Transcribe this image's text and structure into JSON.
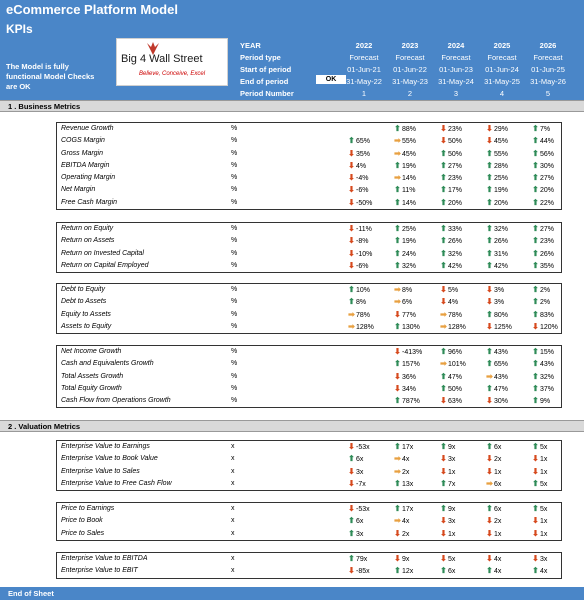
{
  "header": {
    "app_title": "eCommerce Platform Model",
    "page_title": "KPIs",
    "model_check": "The Model is fully functional Model Checks are OK",
    "logo": {
      "text": "Big 4 Wall Street",
      "tagline": "Believe, Conceive, Excel"
    },
    "labels": [
      "YEAR",
      "Period type",
      "Start of period",
      "End of period",
      "Period Number"
    ],
    "ok_label": "OK",
    "columns": [
      {
        "year": "2022",
        "type": "Forecast",
        "start": "01-Jun-21",
        "end": "31-May-22",
        "num": "1"
      },
      {
        "year": "2023",
        "type": "Forecast",
        "start": "01-Jun-22",
        "end": "31-May-23",
        "num": "2"
      },
      {
        "year": "2024",
        "type": "Forecast",
        "start": "01-Jun-23",
        "end": "31-May-24",
        "num": "3"
      },
      {
        "year": "2025",
        "type": "Forecast",
        "start": "01-Jun-24",
        "end": "31-May-25",
        "num": "4"
      },
      {
        "year": "2026",
        "type": "Forecast",
        "start": "01-Jun-25",
        "end": "31-May-26",
        "num": "5"
      }
    ]
  },
  "sections": [
    {
      "title": "1 . Business Metrics",
      "blocks": [
        [
          {
            "label": "Revenue Growth",
            "unit": "%",
            "values": [
              null,
              [
                "u",
                "88%"
              ],
              [
                "d",
                "23%"
              ],
              [
                "d",
                "29%"
              ],
              [
                "u",
                "7%"
              ]
            ]
          },
          {
            "label": "COGS Margin",
            "unit": "%",
            "values": [
              [
                "u",
                "65%"
              ],
              [
                "f",
                "55%"
              ],
              [
                "d",
                "50%"
              ],
              [
                "d",
                "45%"
              ],
              [
                "u",
                "44%"
              ]
            ]
          },
          {
            "label": "Gross Margin",
            "unit": "%",
            "values": [
              [
                "d",
                "35%"
              ],
              [
                "f",
                "45%"
              ],
              [
                "u",
                "50%"
              ],
              [
                "u",
                "55%"
              ],
              [
                "u",
                "56%"
              ]
            ]
          },
          {
            "label": "EBITDA Margin",
            "unit": "%",
            "values": [
              [
                "d",
                "4%"
              ],
              [
                "u",
                "19%"
              ],
              [
                "u",
                "27%"
              ],
              [
                "u",
                "28%"
              ],
              [
                "u",
                "30%"
              ]
            ]
          },
          {
            "label": "Operating Margin",
            "unit": "%",
            "values": [
              [
                "d",
                "-4%"
              ],
              [
                "f",
                "14%"
              ],
              [
                "u",
                "23%"
              ],
              [
                "u",
                "25%"
              ],
              [
                "u",
                "27%"
              ]
            ]
          },
          {
            "label": "Net Margin",
            "unit": "%",
            "values": [
              [
                "d",
                "-6%"
              ],
              [
                "u",
                "11%"
              ],
              [
                "u",
                "17%"
              ],
              [
                "u",
                "19%"
              ],
              [
                "u",
                "20%"
              ]
            ]
          },
          {
            "label": "Free Cash Margin",
            "unit": "%",
            "values": [
              [
                "d",
                "-50%"
              ],
              [
                "u",
                "14%"
              ],
              [
                "u",
                "20%"
              ],
              [
                "u",
                "20%"
              ],
              [
                "u",
                "22%"
              ]
            ]
          }
        ],
        [
          {
            "label": "Return on Equity",
            "unit": "%",
            "values": [
              [
                "d",
                "-11%"
              ],
              [
                "u",
                "25%"
              ],
              [
                "u",
                "33%"
              ],
              [
                "u",
                "32%"
              ],
              [
                "u",
                "27%"
              ]
            ]
          },
          {
            "label": "Return on Assets",
            "unit": "%",
            "values": [
              [
                "d",
                "-8%"
              ],
              [
                "u",
                "19%"
              ],
              [
                "u",
                "26%"
              ],
              [
                "u",
                "26%"
              ],
              [
                "u",
                "23%"
              ]
            ]
          },
          {
            "label": "Return on Invested Capital",
            "unit": "%",
            "values": [
              [
                "d",
                "-10%"
              ],
              [
                "u",
                "24%"
              ],
              [
                "u",
                "32%"
              ],
              [
                "u",
                "31%"
              ],
              [
                "u",
                "26%"
              ]
            ]
          },
          {
            "label": "Return on Capital Employed",
            "unit": "%",
            "values": [
              [
                "d",
                "-6%"
              ],
              [
                "u",
                "32%"
              ],
              [
                "u",
                "42%"
              ],
              [
                "u",
                "42%"
              ],
              [
                "u",
                "35%"
              ]
            ]
          }
        ],
        [
          {
            "label": "Debt to Equity",
            "unit": "%",
            "values": [
              [
                "u",
                "10%"
              ],
              [
                "f",
                "8%"
              ],
              [
                "d",
                "5%"
              ],
              [
                "d",
                "3%"
              ],
              [
                "u",
                "2%"
              ]
            ]
          },
          {
            "label": "Debt to Assets",
            "unit": "%",
            "values": [
              [
                "u",
                "8%"
              ],
              [
                "f",
                "6%"
              ],
              [
                "d",
                "4%"
              ],
              [
                "d",
                "3%"
              ],
              [
                "u",
                "2%"
              ]
            ]
          },
          {
            "label": "Equity to Assets",
            "unit": "%",
            "values": [
              [
                "f",
                "78%"
              ],
              [
                "d",
                "77%"
              ],
              [
                "f",
                "78%"
              ],
              [
                "u",
                "80%"
              ],
              [
                "u",
                "83%"
              ]
            ]
          },
          {
            "label": "Assets to Equity",
            "unit": "%",
            "values": [
              [
                "f",
                "128%"
              ],
              [
                "u",
                "130%"
              ],
              [
                "f",
                "128%"
              ],
              [
                "d",
                "125%"
              ],
              [
                "d",
                "120%"
              ]
            ]
          }
        ],
        [
          {
            "label": "Net Income Growth",
            "unit": "%",
            "values": [
              null,
              [
                "d",
                "-413%"
              ],
              [
                "u",
                "96%"
              ],
              [
                "u",
                "43%"
              ],
              [
                "u",
                "15%"
              ]
            ]
          },
          {
            "label": "Cash and Equivalents Growth",
            "unit": "%",
            "values": [
              null,
              [
                "u",
                "157%"
              ],
              [
                "f",
                "101%"
              ],
              [
                "u",
                "65%"
              ],
              [
                "u",
                "43%"
              ]
            ]
          },
          {
            "label": "Total Assets Growth",
            "unit": "%",
            "values": [
              null,
              [
                "d",
                "36%"
              ],
              [
                "u",
                "47%"
              ],
              [
                "f",
                "43%"
              ],
              [
                "u",
                "32%"
              ]
            ]
          },
          {
            "label": "Total Equity Growth",
            "unit": "%",
            "values": [
              null,
              [
                "d",
                "34%"
              ],
              [
                "u",
                "50%"
              ],
              [
                "u",
                "47%"
              ],
              [
                "u",
                "37%"
              ]
            ]
          },
          {
            "label": "Cash Flow from Operations Growth",
            "unit": "%",
            "values": [
              null,
              [
                "u",
                "787%"
              ],
              [
                "d",
                "63%"
              ],
              [
                "d",
                "30%"
              ],
              [
                "u",
                "9%"
              ]
            ]
          }
        ]
      ]
    },
    {
      "title": "2 . Valuation Metrics",
      "blocks": [
        [
          {
            "label": "Enterprise Value to Earnings",
            "unit": "x",
            "values": [
              [
                "d",
                "-53x"
              ],
              [
                "u",
                "17x"
              ],
              [
                "u",
                "9x"
              ],
              [
                "u",
                "6x"
              ],
              [
                "u",
                "5x"
              ]
            ]
          },
          {
            "label": "Enterprise Value to Book Value",
            "unit": "x",
            "values": [
              [
                "u",
                "6x"
              ],
              [
                "f",
                "4x"
              ],
              [
                "d",
                "3x"
              ],
              [
                "d",
                "2x"
              ],
              [
                "d",
                "1x"
              ]
            ]
          },
          {
            "label": "Enterprise Value to Sales",
            "unit": "x",
            "values": [
              [
                "d",
                "3x"
              ],
              [
                "f",
                "2x"
              ],
              [
                "d",
                "1x"
              ],
              [
                "d",
                "1x"
              ],
              [
                "d",
                "1x"
              ]
            ]
          },
          {
            "label": "Enterprise Value to Free Cash Flow",
            "unit": "x",
            "values": [
              [
                "d",
                "-7x"
              ],
              [
                "u",
                "13x"
              ],
              [
                "u",
                "7x"
              ],
              [
                "f",
                "6x"
              ],
              [
                "u",
                "5x"
              ]
            ]
          }
        ],
        [
          {
            "label": "Price to Earnings",
            "unit": "x",
            "values": [
              [
                "d",
                "-53x"
              ],
              [
                "u",
                "17x"
              ],
              [
                "u",
                "9x"
              ],
              [
                "u",
                "6x"
              ],
              [
                "u",
                "5x"
              ]
            ]
          },
          {
            "label": "Price to Book",
            "unit": "x",
            "values": [
              [
                "u",
                "6x"
              ],
              [
                "f",
                "4x"
              ],
              [
                "d",
                "3x"
              ],
              [
                "d",
                "2x"
              ],
              [
                "d",
                "1x"
              ]
            ]
          },
          {
            "label": "Price to Sales",
            "unit": "x",
            "values": [
              [
                "u",
                "3x"
              ],
              [
                "d",
                "2x"
              ],
              [
                "d",
                "1x"
              ],
              [
                "d",
                "1x"
              ],
              [
                "d",
                "1x"
              ]
            ]
          }
        ],
        [
          {
            "label": "Enterprise Value to EBITDA",
            "unit": "x",
            "values": [
              [
                "u",
                "79x"
              ],
              [
                "d",
                "9x"
              ],
              [
                "d",
                "5x"
              ],
              [
                "d",
                "4x"
              ],
              [
                "d",
                "3x"
              ]
            ]
          },
          {
            "label": "Enterprise Value to EBIT",
            "unit": "x",
            "values": [
              [
                "d",
                "-85x"
              ],
              [
                "u",
                "12x"
              ],
              [
                "u",
                "6x"
              ],
              [
                "u",
                "4x"
              ],
              [
                "u",
                "4x"
              ]
            ]
          }
        ]
      ]
    }
  ],
  "footer": {
    "end_label": "End of Sheet"
  },
  "colors": {
    "banner": "#4a86c8",
    "up": "#2e8b57",
    "down": "#d64a1e",
    "flat": "#e8a040"
  },
  "icons": {
    "u": "arrow-up-icon",
    "d": "arrow-down-icon",
    "f": "arrow-right-icon"
  }
}
